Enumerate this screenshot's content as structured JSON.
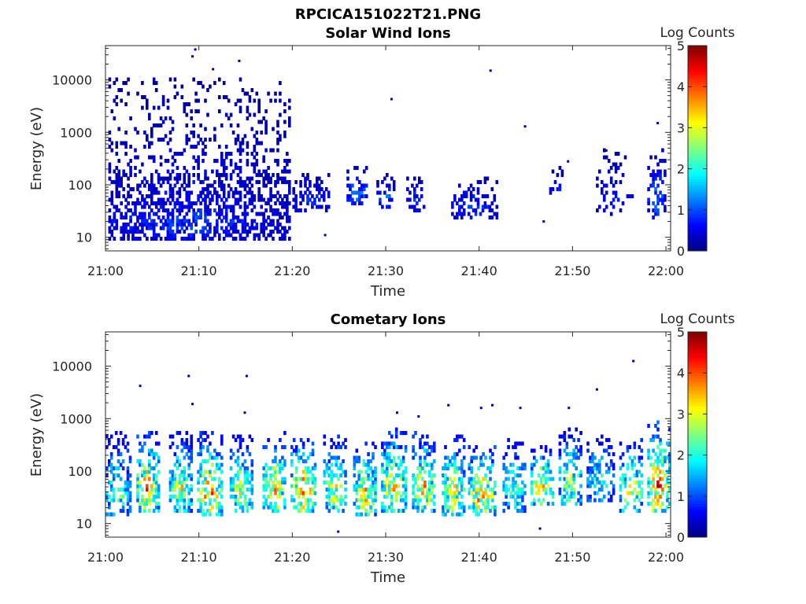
{
  "figure": {
    "title": "RPCICA151022T21.PNG"
  },
  "colormap": [
    "#00007f",
    "#0000ff",
    "#007fff",
    "#00ffff",
    "#7fff7f",
    "#ffff00",
    "#ff7f00",
    "#ff0000",
    "#7f0000"
  ],
  "chart_data": [
    {
      "type": "heatmap",
      "title": "Solar Wind Ions",
      "xlabel": "Time",
      "ylabel": "Energy (eV)",
      "colorbar_label": "Log Counts",
      "colorbar_ticks": [
        "0",
        "1",
        "2",
        "3",
        "4",
        "5"
      ],
      "color_range": [
        0,
        5
      ],
      "x_range_minutes": [
        0,
        60.5
      ],
      "x_tick_labels": [
        "21:00",
        "21:10",
        "21:20",
        "21:30",
        "21:40",
        "21:50",
        "22:00"
      ],
      "y_scale": "log",
      "y_range": [
        5.5,
        45000
      ],
      "y_tick_labels": [
        "10",
        "100",
        "1000",
        "10000"
      ],
      "bursts": [
        {
          "t0": 0.3,
          "t1": 19.8,
          "emin": 8,
          "emax": 11000,
          "density": 0.3,
          "level": 0.35
        },
        {
          "t0": 0.3,
          "t1": 19.8,
          "emin": 8,
          "emax": 150,
          "density": 0.45,
          "level": 0.5
        },
        {
          "t0": 20,
          "t1": 23.8,
          "emin": 30,
          "emax": 160,
          "density": 0.5,
          "level": 0.5
        },
        {
          "t0": 25.8,
          "t1": 28,
          "emin": 40,
          "emax": 200,
          "density": 0.55,
          "level": 0.7
        },
        {
          "t0": 29,
          "t1": 30.8,
          "emin": 35,
          "emax": 150,
          "density": 0.5,
          "level": 0.6
        },
        {
          "t0": 32.2,
          "t1": 34,
          "emin": 30,
          "emax": 130,
          "density": 0.5,
          "level": 0.5
        },
        {
          "t0": 37,
          "t1": 41.8,
          "emin": 20,
          "emax": 130,
          "density": 0.4,
          "level": 0.5
        },
        {
          "t0": 47.5,
          "t1": 49,
          "emin": 50,
          "emax": 200,
          "density": 0.3,
          "level": 0.4
        },
        {
          "t0": 52.5,
          "t1": 56.5,
          "emin": 25,
          "emax": 450,
          "density": 0.2,
          "level": 0.4
        },
        {
          "t0": 58,
          "t1": 60,
          "emin": 20,
          "emax": 550,
          "density": 0.45,
          "level": 0.6
        }
      ],
      "points": [
        {
          "t": 9.6,
          "e": 38000
        },
        {
          "t": 9.3,
          "e": 28000
        },
        {
          "t": 14.3,
          "e": 23000
        },
        {
          "t": 11.5,
          "e": 16000
        },
        {
          "t": 41.2,
          "e": 15000
        },
        {
          "t": 30.6,
          "e": 4300
        },
        {
          "t": 44.9,
          "e": 1300
        },
        {
          "t": 59.1,
          "e": 1500
        },
        {
          "t": 23.5,
          "e": 11
        },
        {
          "t": 46.9,
          "e": 20
        },
        {
          "t": 49.5,
          "e": 280
        },
        {
          "t": 53.6,
          "e": 450
        }
      ],
      "seed": 11
    },
    {
      "type": "heatmap",
      "title": "Cometary Ions",
      "xlabel": "Time",
      "ylabel": "Energy (eV)",
      "colorbar_label": "Log Counts",
      "colorbar_ticks": [
        "0",
        "1",
        "2",
        "3",
        "4",
        "5"
      ],
      "color_range": [
        0,
        5
      ],
      "x_range_minutes": [
        0,
        60.5
      ],
      "x_tick_labels": [
        "21:00",
        "21:10",
        "21:20",
        "21:30",
        "21:40",
        "21:50",
        "22:00"
      ],
      "y_scale": "log",
      "y_range": [
        5.5,
        45000
      ],
      "y_tick_labels": [
        "10",
        "100",
        "1000",
        "10000"
      ],
      "bursts": [
        {
          "t0": 0,
          "t1": 2.6,
          "emin": 12,
          "emax": 500,
          "density": 0.55,
          "level": 1.3
        },
        {
          "t0": 3.3,
          "t1": 5.7,
          "emin": 15,
          "emax": 550,
          "density": 0.6,
          "level": 2.0
        },
        {
          "t0": 6.8,
          "t1": 9.3,
          "emin": 15,
          "emax": 500,
          "density": 0.6,
          "level": 1.6
        },
        {
          "t0": 9.8,
          "t1": 12.5,
          "emin": 12,
          "emax": 500,
          "density": 0.6,
          "level": 2.0
        },
        {
          "t0": 13.3,
          "t1": 15.8,
          "emin": 15,
          "emax": 450,
          "density": 0.6,
          "level": 1.6
        },
        {
          "t0": 16.8,
          "t1": 19.3,
          "emin": 15,
          "emax": 550,
          "density": 0.6,
          "level": 1.9
        },
        {
          "t0": 19.8,
          "t1": 22.5,
          "emin": 15,
          "emax": 450,
          "density": 0.6,
          "level": 2.0
        },
        {
          "t0": 23.3,
          "t1": 25.8,
          "emin": 15,
          "emax": 500,
          "density": 0.6,
          "level": 1.6
        },
        {
          "t0": 26.5,
          "t1": 29,
          "emin": 12,
          "emax": 400,
          "density": 0.6,
          "level": 1.8
        },
        {
          "t0": 29.5,
          "t1": 32.2,
          "emin": 15,
          "emax": 600,
          "density": 0.6,
          "level": 1.9
        },
        {
          "t0": 32.8,
          "t1": 35.3,
          "emin": 15,
          "emax": 500,
          "density": 0.6,
          "level": 1.8
        },
        {
          "t0": 36,
          "t1": 38.5,
          "emin": 12,
          "emax": 450,
          "density": 0.6,
          "level": 1.7
        },
        {
          "t0": 38.8,
          "t1": 41.8,
          "emin": 12,
          "emax": 300,
          "density": 0.6,
          "level": 2.0
        },
        {
          "t0": 42.5,
          "t1": 45,
          "emin": 15,
          "emax": 400,
          "density": 0.55,
          "level": 1.3
        },
        {
          "t0": 45.5,
          "t1": 48,
          "emin": 20,
          "emax": 300,
          "density": 0.6,
          "level": 1.8
        },
        {
          "t0": 48.5,
          "t1": 51,
          "emin": 20,
          "emax": 600,
          "density": 0.55,
          "level": 1.5
        },
        {
          "t0": 51.5,
          "t1": 54.5,
          "emin": 25,
          "emax": 450,
          "density": 0.5,
          "level": 1.2
        },
        {
          "t0": 55,
          "t1": 57.5,
          "emin": 15,
          "emax": 400,
          "density": 0.55,
          "level": 1.7
        },
        {
          "t0": 58,
          "t1": 60.3,
          "emin": 15,
          "emax": 800,
          "density": 0.6,
          "level": 2.2
        }
      ],
      "points": [
        {
          "t": 3.7,
          "e": 4200
        },
        {
          "t": 8.9,
          "e": 6500
        },
        {
          "t": 9.3,
          "e": 1900
        },
        {
          "t": 15.1,
          "e": 6500
        },
        {
          "t": 14.9,
          "e": 1300
        },
        {
          "t": 56.5,
          "e": 12500
        },
        {
          "t": 52.6,
          "e": 3600
        },
        {
          "t": 41.4,
          "e": 1800
        },
        {
          "t": 40.2,
          "e": 1600
        },
        {
          "t": 44.4,
          "e": 1600
        },
        {
          "t": 49.6,
          "e": 1600
        },
        {
          "t": 31.2,
          "e": 1300
        },
        {
          "t": 33.5,
          "e": 1100
        },
        {
          "t": 36.7,
          "e": 1800
        },
        {
          "t": 24.9,
          "e": 7
        },
        {
          "t": 46.5,
          "e": 8
        }
      ],
      "seed": 29
    }
  ]
}
